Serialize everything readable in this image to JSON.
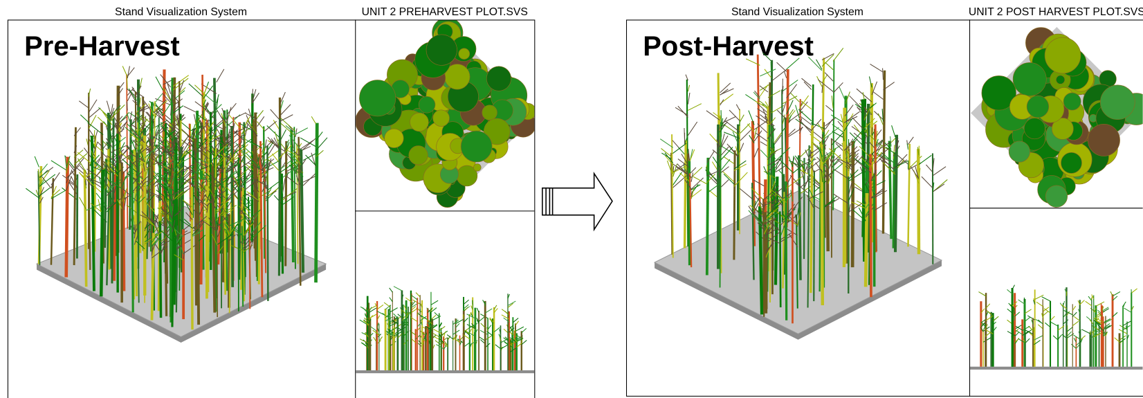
{
  "left": {
    "app_title": "Stand Visualization System",
    "file_title": "UNIT 2 PREHARVEST PLOT.SVS",
    "label": "Pre-Harvest"
  },
  "right": {
    "app_title": "Stand Visualization System",
    "file_title": "UNIT 2 POST HARVEST PLOT.SVS",
    "label": "Post-Harvest"
  }
}
